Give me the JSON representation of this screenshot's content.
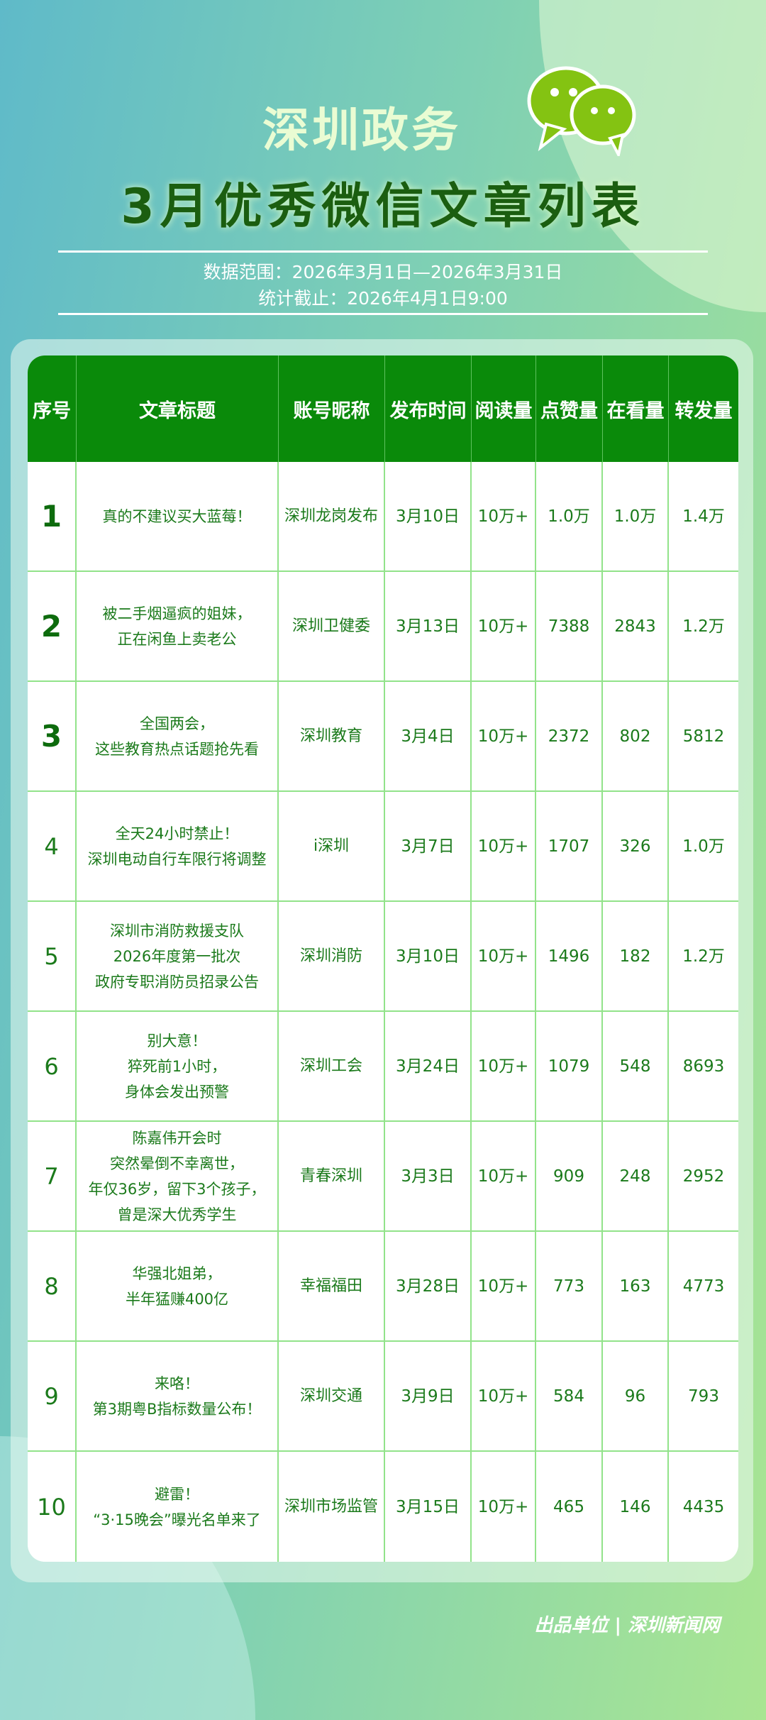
{
  "header": {
    "brand": "深圳政务",
    "title": "3月优秀微信文章列表",
    "data_range": "数据范围：2026年3月1日—2026年3月31日",
    "cutoff": "统计截止：2026年4月1日9:00",
    "logo_icon": "wechat-icon"
  },
  "colors": {
    "header_bg": "#0a8a0a",
    "text": "#1b7a1b",
    "grid": "#92e38a"
  },
  "table": {
    "columns": [
      "序号",
      "文章标题",
      "账号昵称",
      "发布时间",
      "阅读量",
      "点赞量",
      "在看量",
      "转发量"
    ],
    "rows": [
      [
        "1",
        "真的不建议买大蓝莓！",
        "深圳龙岗发布",
        "3月10日",
        "10万+",
        "1.0万",
        "1.0万",
        "1.4万"
      ],
      [
        "2",
        "被二手烟逼疯的姐妹，\n正在闲鱼上卖老公",
        "深圳卫健委",
        "3月13日",
        "10万+",
        "7388",
        "2843",
        "1.2万"
      ],
      [
        "3",
        "全国两会，\n这些教育热点话题抢先看",
        "深圳教育",
        "3月4日",
        "10万+",
        "2372",
        "802",
        "5812"
      ],
      [
        "4",
        "全天24小时禁止！\n深圳电动自行车限行将调整",
        "i深圳",
        "3月7日",
        "10万+",
        "1707",
        "326",
        "1.0万"
      ],
      [
        "5",
        "深圳市消防救援支队\n2026年度第一批次\n政府专职消防员招录公告",
        "深圳消防",
        "3月10日",
        "10万+",
        "1496",
        "182",
        "1.2万"
      ],
      [
        "6",
        "别大意！\n猝死前1小时，\n身体会发出预警",
        "深圳工会",
        "3月24日",
        "10万+",
        "1079",
        "548",
        "8693"
      ],
      [
        "7",
        "陈嘉伟开会时\n突然晕倒不幸离世，\n年仅36岁，留下3个孩子，\n曾是深大优秀学生",
        "青春深圳",
        "3月3日",
        "10万+",
        "909",
        "248",
        "2952"
      ],
      [
        "8",
        "华强北姐弟，\n半年猛赚400亿",
        "幸福福田",
        "3月28日",
        "10万+",
        "773",
        "163",
        "4773"
      ],
      [
        "9",
        "来咯！\n第3期粤B指标数量公布！",
        "深圳交通",
        "3月9日",
        "10万+",
        "584",
        "96",
        "793"
      ],
      [
        "10",
        "避雷！\n“3·15晚会”曝光名单来了",
        "深圳市场监管",
        "3月15日",
        "10万+",
        "465",
        "146",
        "4435"
      ]
    ]
  },
  "footer": {
    "credit": "出品单位 | 深圳新闻网"
  }
}
